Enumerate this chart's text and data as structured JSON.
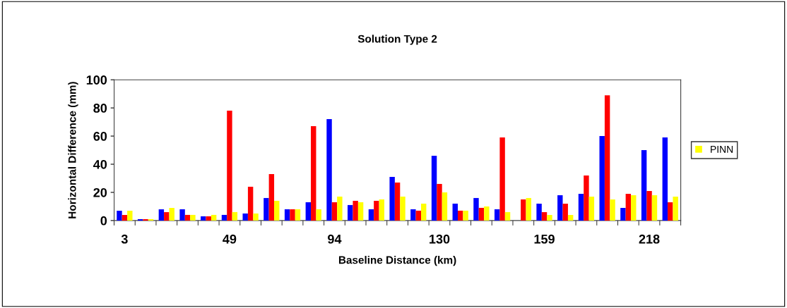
{
  "chart_data": {
    "type": "bar",
    "title": "Solution Type 2",
    "xlabel": "Baseline Distance (km)",
    "ylabel": "Horizontal Difference (mm)",
    "categories": [
      "3",
      null,
      null,
      null,
      null,
      "49",
      null,
      null,
      null,
      null,
      "94",
      null,
      null,
      null,
      null,
      "130",
      null,
      null,
      null,
      null,
      "159",
      null,
      null,
      null,
      null,
      "218",
      null
    ],
    "series": [
      {
        "color": "#0000ff",
        "values": [
          7,
          1,
          8,
          8,
          3,
          4,
          5,
          16,
          8,
          13,
          72,
          11,
          8,
          31,
          8,
          46,
          12,
          16,
          8,
          null,
          12,
          18,
          19,
          60,
          9,
          50,
          59
        ]
      },
      {
        "color": "#ff0000",
        "values": [
          4,
          1,
          6,
          4,
          3,
          78,
          24,
          33,
          8,
          67,
          13,
          14,
          14,
          27,
          7,
          26,
          7,
          9,
          59,
          15,
          6,
          12,
          32,
          89,
          19,
          21,
          13
        ]
      },
      {
        "name": "PINN",
        "color": "#ffff00",
        "values": [
          7,
          1,
          9,
          4,
          4,
          6,
          5,
          14,
          8,
          8,
          17,
          13,
          15,
          17,
          12,
          20,
          7,
          10,
          6,
          16,
          4,
          4,
          17,
          15,
          18,
          18,
          17
        ]
      }
    ],
    "ylim": [
      0,
      100
    ],
    "yticks": [
      0,
      20,
      40,
      60,
      80,
      100
    ],
    "grid": false,
    "legend": "right"
  }
}
